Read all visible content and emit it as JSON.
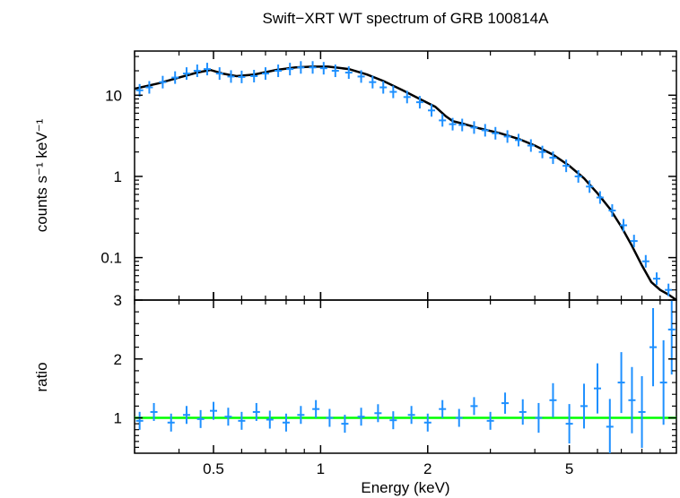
{
  "chart_data": {
    "title": "Swift−XRT WT spectrum of GRB 100814A",
    "xlabel": "Energy (keV)",
    "x_scale": "log",
    "xlim": [
      0.3,
      10
    ],
    "x_ticks": [
      0.5,
      1,
      2,
      5
    ],
    "x_tick_labels": [
      "0.5",
      "1",
      "2",
      "5"
    ],
    "panels": [
      {
        "type": "scatter",
        "ylabel": "counts s⁻¹ keV⁻¹",
        "y_scale": "log",
        "ylim": [
          0.03,
          35
        ],
        "y_ticks": [
          0.1,
          1,
          10
        ],
        "y_tick_labels": [
          "0.1",
          "1",
          "10"
        ],
        "series": [
          {
            "kind": "data_with_errors",
            "color": "#1e90ff",
            "x": [
              0.31,
              0.33,
              0.36,
              0.39,
              0.42,
              0.45,
              0.48,
              0.52,
              0.56,
              0.6,
              0.65,
              0.7,
              0.76,
              0.82,
              0.88,
              0.95,
              1.02,
              1.1,
              1.2,
              1.3,
              1.4,
              1.5,
              1.6,
              1.75,
              1.9,
              2.05,
              2.2,
              2.35,
              2.5,
              2.7,
              2.9,
              3.1,
              3.35,
              3.6,
              3.9,
              4.2,
              4.5,
              4.9,
              5.3,
              5.7,
              6.1,
              6.6,
              7.1,
              7.6,
              8.2,
              8.8,
              9.5
            ],
            "y": [
              11.5,
              12.5,
              14.5,
              16.5,
              18.5,
              20,
              21,
              18.5,
              17,
              16.8,
              17.2,
              18.5,
              20,
              21,
              22,
              22,
              21.5,
              20,
              19,
              17,
              14.5,
              12.5,
              11,
              9.5,
              8.2,
              6.5,
              4.9,
              4.4,
              4.3,
              4.0,
              3.7,
              3.4,
              3.1,
              2.8,
              2.4,
              2.0,
              1.7,
              1.35,
              1.0,
              0.75,
              0.55,
              0.38,
              0.25,
              0.16,
              0.09,
              0.055,
              0.04
            ]
          },
          {
            "kind": "model",
            "color": "#000000",
            "x": [
              0.3,
              0.35,
              0.4,
              0.45,
              0.49,
              0.53,
              0.58,
              0.65,
              0.75,
              0.85,
              0.95,
              1.05,
              1.2,
              1.35,
              1.5,
              1.7,
              1.9,
              2.1,
              2.25,
              2.35,
              2.5,
              2.8,
              3.2,
              3.6,
              4.0,
              4.5,
              5.0,
              5.5,
              6.0,
              6.5,
              7.0,
              7.5,
              8.0,
              8.5,
              9.0,
              9.5,
              10.0
            ],
            "y": [
              12,
              14,
              16.5,
              19,
              20.5,
              18.5,
              17.2,
              18,
              20.5,
              22,
              22.5,
              22.5,
              21,
              18,
              15,
              11.5,
              9,
              7.2,
              5.5,
              4.8,
              4.5,
              3.9,
              3.4,
              2.9,
              2.4,
              1.85,
              1.35,
              0.95,
              0.62,
              0.4,
              0.24,
              0.14,
              0.08,
              0.05,
              0.04,
              0.035,
              0.03
            ]
          }
        ]
      },
      {
        "type": "scatter",
        "ylabel": "ratio",
        "y_scale": "linear",
        "ylim": [
          0.4,
          3
        ],
        "y_ticks": [
          1,
          2,
          3
        ],
        "y_tick_labels": [
          "1",
          "2",
          "3"
        ],
        "reference_line": {
          "y": 1,
          "color": "#00ff00"
        },
        "series": [
          {
            "kind": "ratio_with_errors",
            "color": "#1e90ff",
            "x": [
              0.31,
              0.34,
              0.38,
              0.42,
              0.46,
              0.5,
              0.55,
              0.6,
              0.66,
              0.72,
              0.8,
              0.88,
              0.97,
              1.06,
              1.17,
              1.3,
              1.45,
              1.6,
              1.8,
              2.0,
              2.2,
              2.45,
              2.7,
              3.0,
              3.3,
              3.7,
              4.1,
              4.5,
              5.0,
              5.5,
              6.0,
              6.5,
              7.0,
              7.5,
              8.0,
              8.6,
              9.2,
              9.7
            ],
            "y": [
              0.95,
              1.1,
              0.92,
              1.05,
              0.98,
              1.12,
              1.02,
              0.95,
              1.1,
              0.97,
              0.92,
              1.05,
              1.15,
              1.0,
              0.9,
              1.02,
              1.08,
              0.96,
              1.05,
              0.92,
              1.15,
              1.0,
              1.2,
              0.95,
              1.25,
              1.1,
              1.0,
              1.3,
              0.9,
              1.2,
              1.5,
              0.85,
              1.6,
              1.3,
              1.1,
              2.2,
              1.6,
              2.5
            ]
          }
        ]
      }
    ]
  }
}
